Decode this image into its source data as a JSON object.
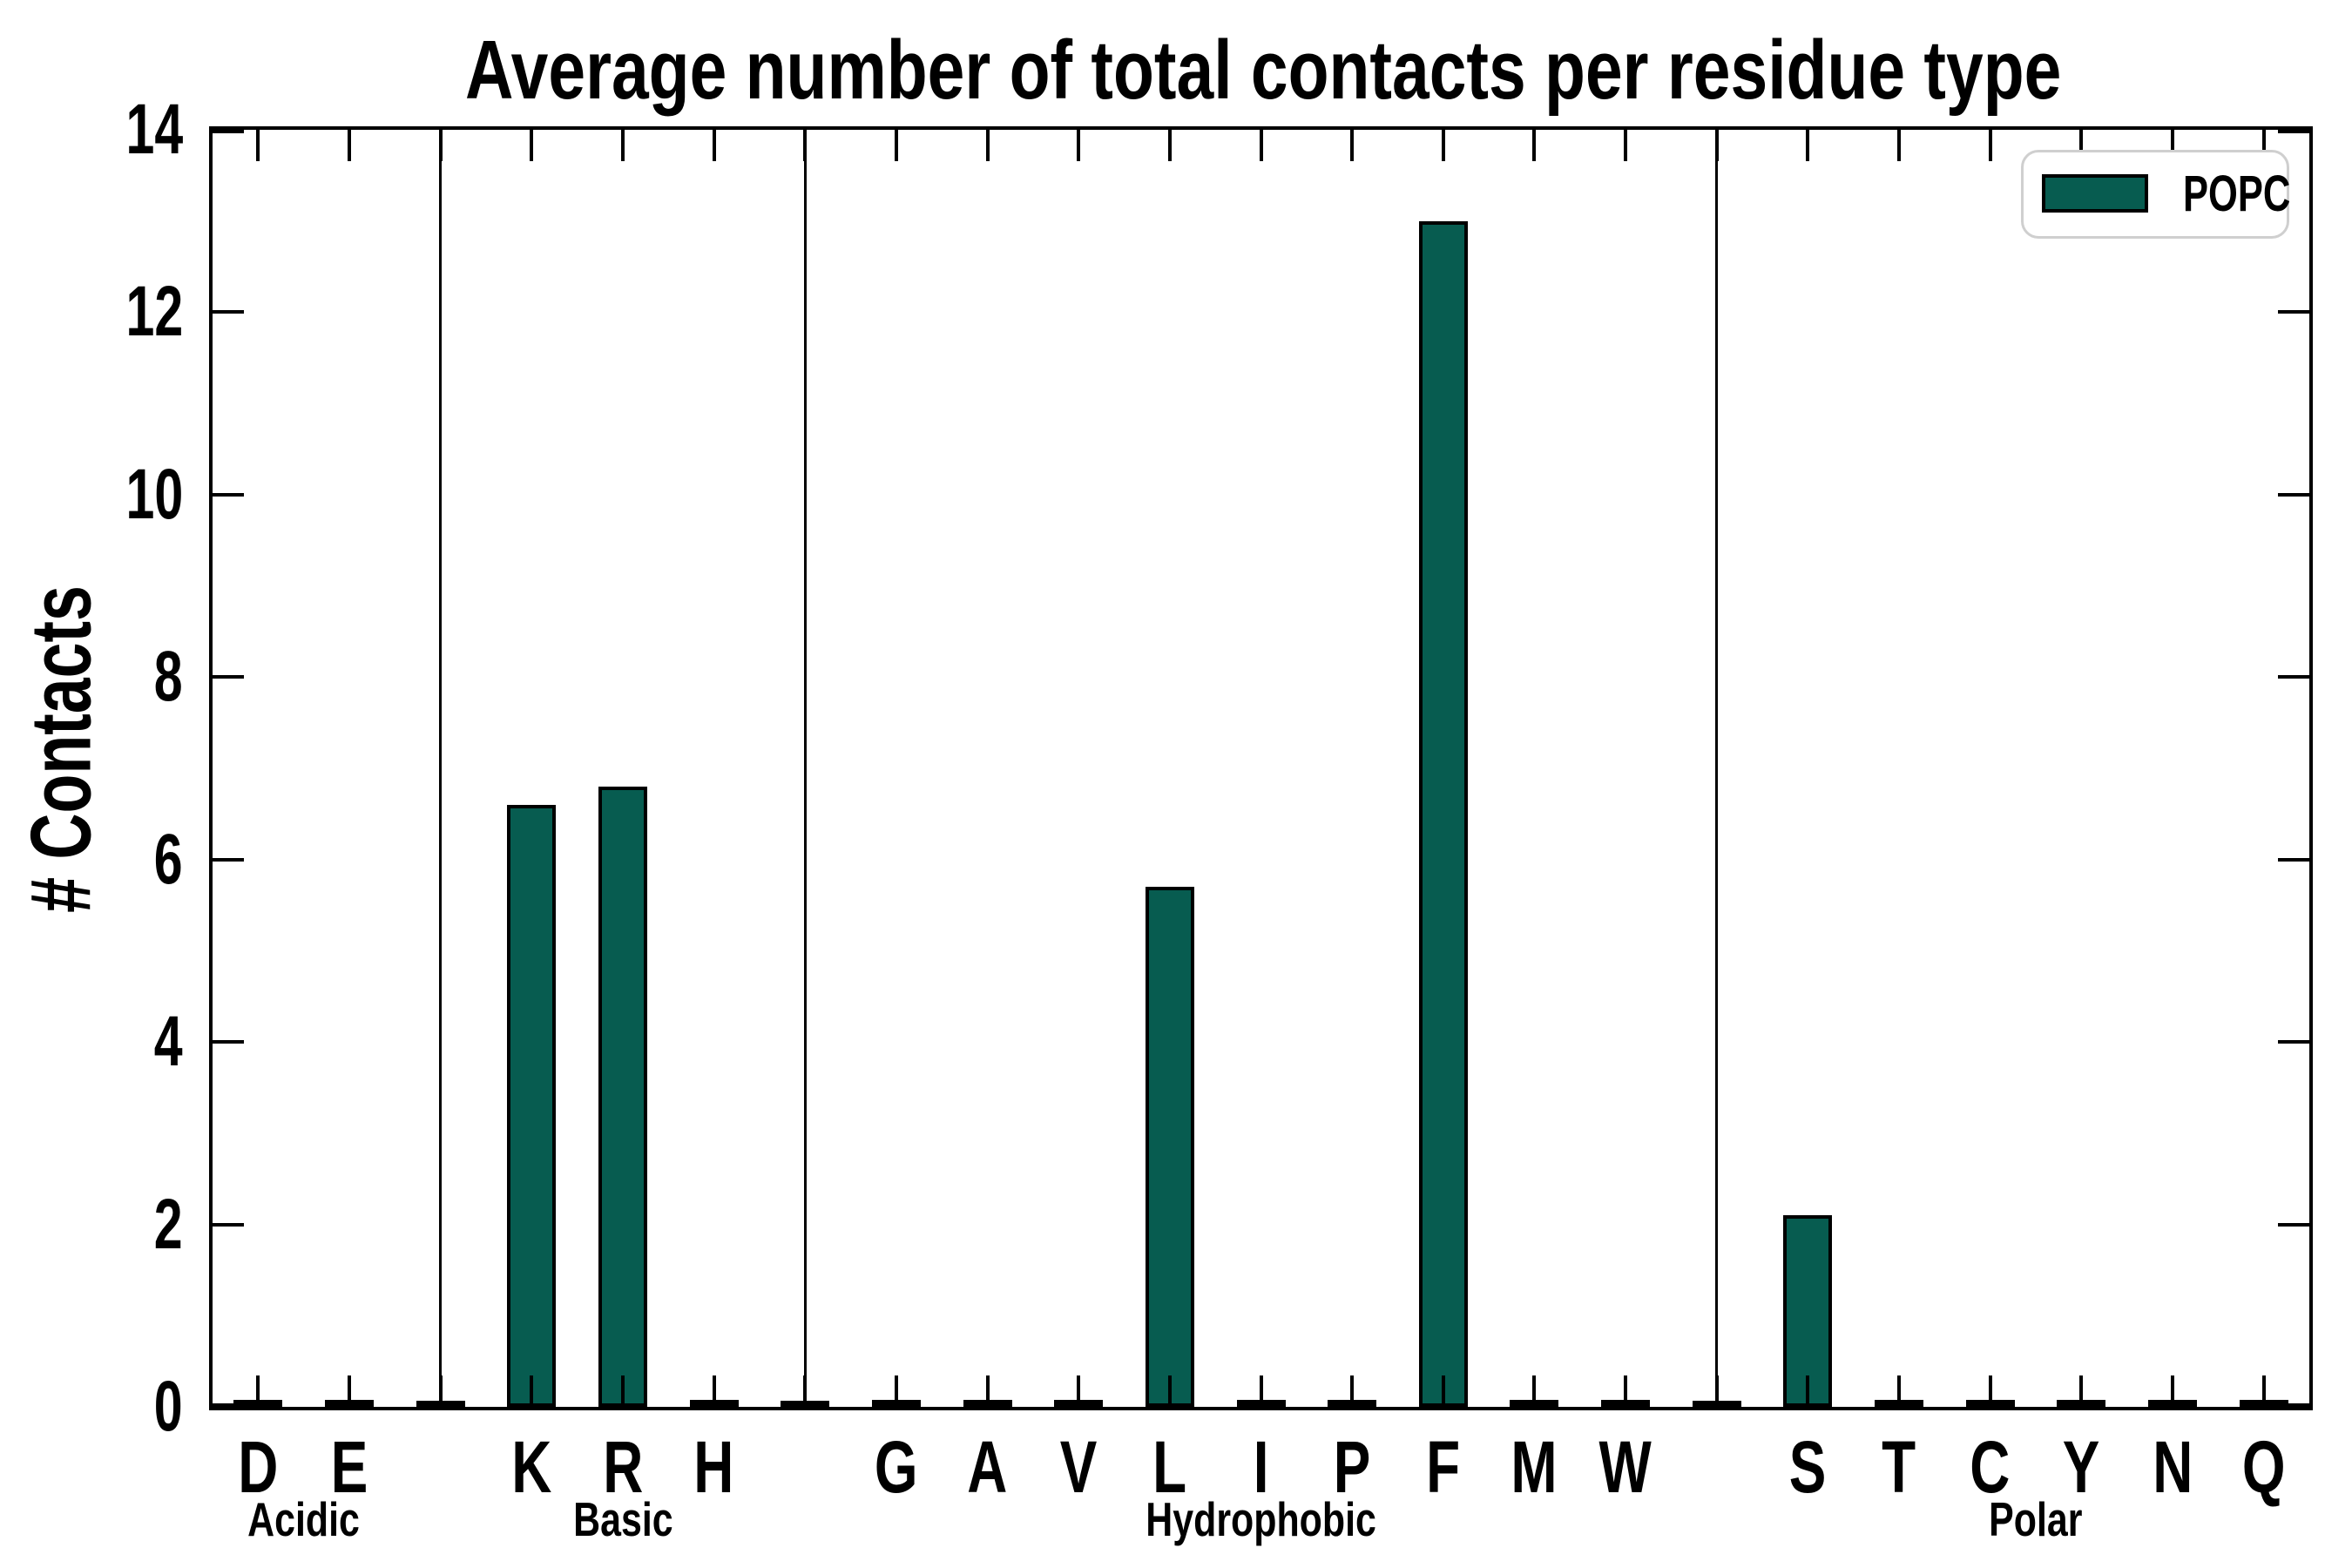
{
  "title": "Average number of total contacts per residue type",
  "y_axis": {
    "label": "# Contacts",
    "tick_labels": [
      "0",
      "2",
      "4",
      "6",
      "8",
      "10",
      "12",
      "14"
    ]
  },
  "legend": {
    "label": "POPC"
  },
  "colors": {
    "bar_fill": "#075c50",
    "bar_edge": "#000000",
    "axis": "#000000",
    "legend_border": "#cfcfcf",
    "background": "#ffffff",
    "text": "#000000"
  },
  "chart_data": {
    "type": "bar",
    "title": "Average number of total contacts per residue type",
    "xlabel": "",
    "ylabel": "# Contacts",
    "ylim": [
      0,
      14
    ],
    "yticks": [
      0,
      2,
      4,
      6,
      8,
      10,
      12,
      14
    ],
    "grid": false,
    "legend_entries": [
      "POPC"
    ],
    "legend_position": "upper right",
    "series_name": "POPC",
    "groups": [
      {
        "label": "Acidic",
        "categories": [
          "D",
          "E"
        ],
        "values": [
          0.05,
          0.05
        ]
      },
      {
        "label": "Basic",
        "categories": [
          "K",
          "R",
          "H"
        ],
        "values": [
          6.6,
          6.8,
          0.05
        ]
      },
      {
        "label": "Hydrophobic",
        "categories": [
          "G",
          "A",
          "V",
          "L",
          "I",
          "P",
          "F",
          "M",
          "W"
        ],
        "values": [
          0.05,
          0.05,
          0.05,
          5.7,
          0.05,
          0.05,
          13.0,
          0.05,
          0.05
        ]
      },
      {
        "label": "Polar",
        "categories": [
          "S",
          "T",
          "C",
          "Y",
          "N",
          "Q"
        ],
        "values": [
          2.1,
          0.05,
          0.05,
          0.05,
          0.05,
          0.05
        ]
      }
    ],
    "group_separators": true
  }
}
